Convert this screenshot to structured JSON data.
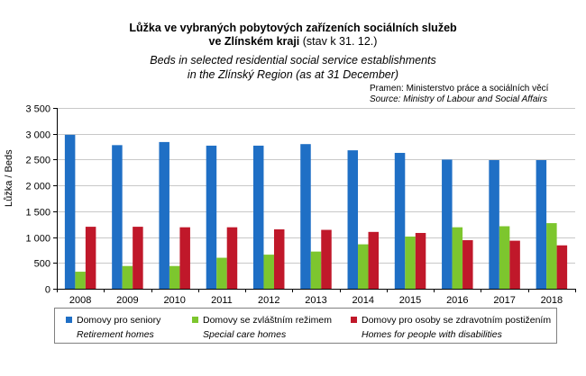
{
  "title": {
    "line1": "Lůžka ve vybraných pobytových  zařízeních sociálních služeb",
    "line2_bold": "ve Zlínském kraji",
    "line2_rest": " (stav k 31. 12.)",
    "en_line1": "Beds in selected residential social service establishments",
    "en_line2": "in the Zlínský Region (as at 31 December)"
  },
  "source": {
    "cz": "Pramen: Ministerstvo práce a sociálních věcí",
    "en": "Source: Ministry of Labour and Social Affairs"
  },
  "colors": {
    "seniors": "#1F6FC5",
    "special": "#7DC62E",
    "disabilities": "#C0182A"
  },
  "legend": [
    {
      "cz": "Domovy pro seniory",
      "en": "Retirement homes"
    },
    {
      "cz": "Domovy se zvláštním režimem",
      "en": "Special care homes"
    },
    {
      "cz": "Domovy pro osoby se zdravotním postižením",
      "en": "Homes for people with disabilities"
    }
  ],
  "chart_data": {
    "type": "bar",
    "title": "Lůžka ve vybraných pobytových zařízeních sociálních služeb ve Zlínském kraji (stav k 31. 12.)",
    "xlabel": "",
    "ylabel": "Lůžka / Beds",
    "ylim": [
      0,
      3500
    ],
    "yticks": [
      0,
      500,
      1000,
      1500,
      2000,
      2500,
      3000,
      3500
    ],
    "ytick_labels": [
      "0",
      "500",
      "1 000",
      "1 500",
      "2 000",
      "2 500",
      "3 000",
      "3 500"
    ],
    "grid": true,
    "categories": [
      "2008",
      "2009",
      "2010",
      "2011",
      "2012",
      "2013",
      "2014",
      "2015",
      "2016",
      "2017",
      "2018"
    ],
    "series": [
      {
        "name": "Domovy pro seniory",
        "values": [
          2980,
          2780,
          2840,
          2770,
          2770,
          2800,
          2680,
          2630,
          2500,
          2490,
          2490
        ]
      },
      {
        "name": "Domovy se zvláštním režimem",
        "values": [
          330,
          440,
          440,
          600,
          660,
          720,
          860,
          1010,
          1190,
          1210,
          1270
        ]
      },
      {
        "name": "Domovy pro osoby se zdravotním postižením",
        "values": [
          1200,
          1200,
          1190,
          1190,
          1150,
          1140,
          1100,
          1080,
          940,
          930,
          840
        ]
      }
    ]
  }
}
